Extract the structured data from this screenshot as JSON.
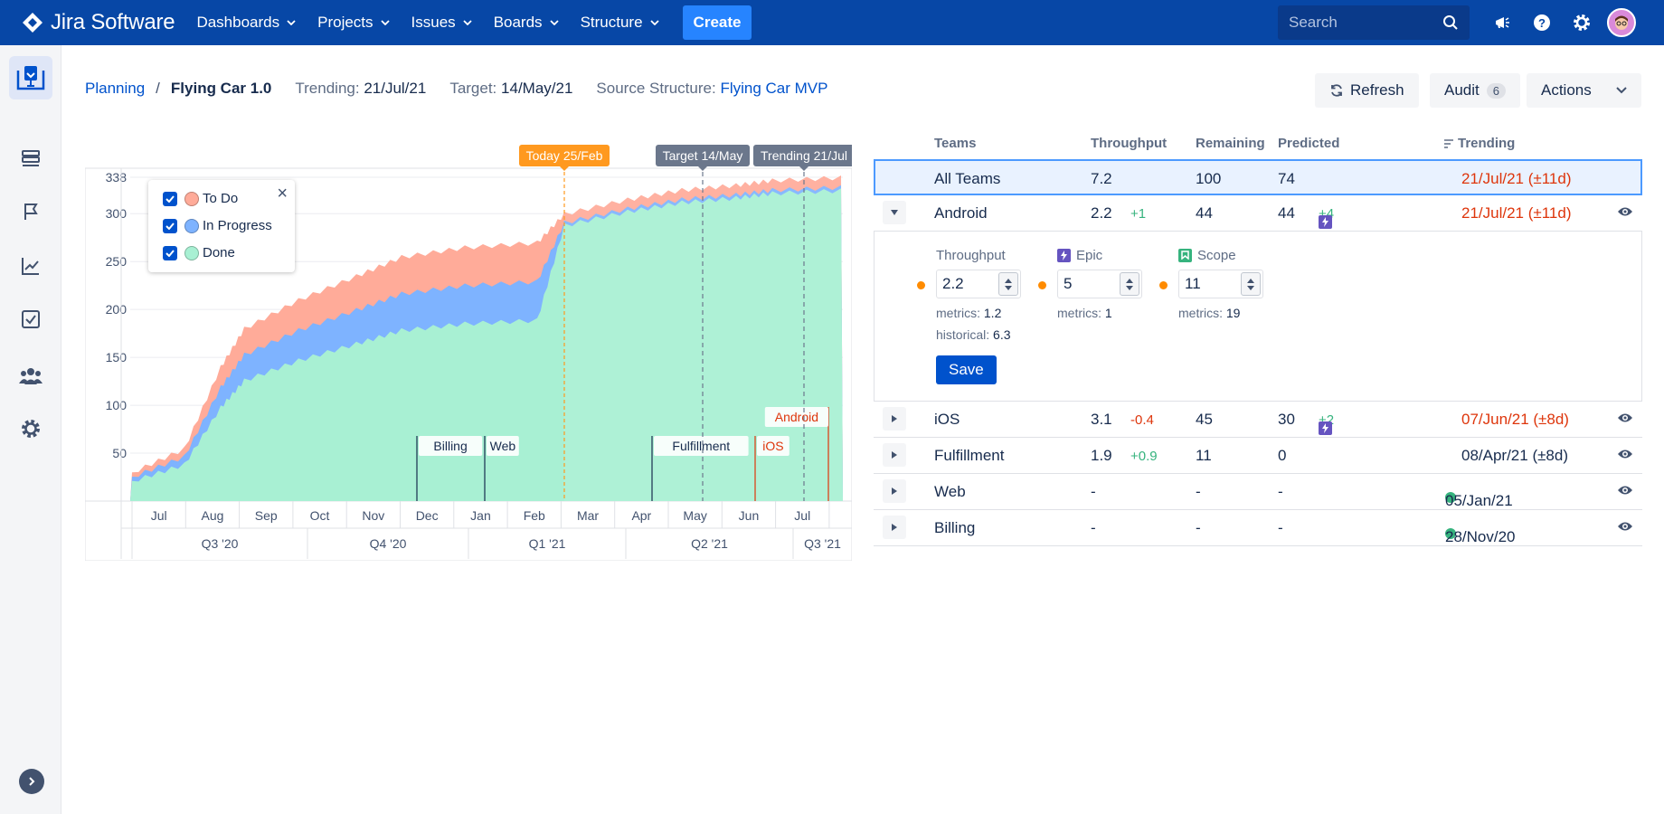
{
  "app": {
    "name": "Jira Software"
  },
  "topnav": {
    "items": [
      "Dashboards",
      "Projects",
      "Issues",
      "Boards",
      "Structure"
    ],
    "create_label": "Create",
    "search_placeholder": "Search"
  },
  "header": {
    "breadcrumb_root": "Planning",
    "breadcrumb_sep": "/",
    "title": "Flying Car 1.0",
    "trending_label": "Trending:",
    "trending_value": "21/Jul/21",
    "target_label": "Target:",
    "target_value": "14/May/21",
    "source_label": "Source Structure:",
    "source_value": "Flying Car MVP",
    "refresh_label": "Refresh",
    "audit_label": "Audit",
    "audit_count": "6",
    "actions_label": "Actions"
  },
  "legend": {
    "items": [
      {
        "label": "To Do",
        "color": "#ffab99"
      },
      {
        "label": "In Progress",
        "color": "#7eb3ff"
      },
      {
        "label": "Done",
        "color": "#a8f0d3"
      }
    ]
  },
  "chart_data": {
    "type": "area",
    "stacked": true,
    "y_ticks": [
      "338",
      "300",
      "250",
      "200",
      "150",
      "100",
      "50"
    ],
    "ylim": [
      0,
      338
    ],
    "months": [
      "Jul",
      "Aug",
      "Sep",
      "Oct",
      "Nov",
      "Dec",
      "Jan",
      "Feb",
      "Mar",
      "Apr",
      "May",
      "Jun",
      "Jul"
    ],
    "quarters": [
      "Q3 '20",
      "Q4 '20",
      "Q1 '21",
      "Q2 '21",
      "Q3 '21"
    ],
    "markers": [
      {
        "label": "Today 25/Feb",
        "color": "#ff991f"
      },
      {
        "label": "Target 14/May",
        "color": "#6b778c"
      },
      {
        "label": "Trending 21/Jul",
        "color": "#6b778c"
      }
    ],
    "milestones": [
      "Billing",
      "Web",
      "Fulfillment",
      "iOS",
      "Android"
    ],
    "series": [
      {
        "name": "To Do",
        "color": "#ffab99"
      },
      {
        "name": "In Progress",
        "color": "#7eb3ff"
      },
      {
        "name": "Done",
        "color": "#a8f0d3"
      }
    ],
    "x": [
      "Jun 20",
      "Jul 20",
      "Aug 20",
      "Sep 20",
      "Oct 20",
      "Nov 20",
      "Dec 20",
      "Jan 21",
      "Feb 21",
      "25 Feb 21",
      "Mar 21",
      "Apr 21",
      "May 21",
      "Jun 21",
      "Jul 21"
    ],
    "totals": [
      30,
      55,
      140,
      180,
      210,
      235,
      255,
      265,
      270,
      300,
      315,
      325,
      330,
      335,
      338
    ]
  },
  "table": {
    "headers": [
      "Teams",
      "Throughput",
      "Remaining",
      "Predicted",
      "Trending"
    ],
    "all": {
      "team": "All Teams",
      "throughput": "7.2",
      "remaining": "100",
      "predicted": "74",
      "trending": "21/Jul/21 (±11d)"
    },
    "rows": [
      {
        "team": "Android",
        "throughput": "2.2",
        "delta": "+1",
        "remaining": "44",
        "predicted": "44",
        "pdelta": "+4",
        "trending": "21/Jul/21 (±11d)"
      },
      {
        "team": "iOS",
        "throughput": "3.1",
        "delta": "-0.4",
        "remaining": "45",
        "predicted": "30",
        "pdelta": "+2",
        "trending": "07/Jun/21 (±8d)"
      },
      {
        "team": "Fulfillment",
        "throughput": "1.9",
        "delta": "+0.9",
        "remaining": "11",
        "predicted": "0",
        "trending": "08/Apr/21 (±8d)"
      },
      {
        "team": "Web",
        "throughput": "-",
        "remaining": "-",
        "predicted": "-",
        "trending": "05/Jan/21"
      },
      {
        "team": "Billing",
        "throughput": "-",
        "remaining": "-",
        "predicted": "-",
        "trending": "28/Nov/20"
      }
    ],
    "detail": {
      "throughput_label": "Throughput",
      "throughput_value": "2.2",
      "throughput_metrics_label": "metrics:",
      "throughput_metrics": "1.2",
      "throughput_hist_label": "historical:",
      "throughput_hist": "6.3",
      "epic_label": "Epic",
      "epic_value": "5",
      "epic_metrics_label": "metrics:",
      "epic_metrics": "1",
      "scope_label": "Scope",
      "scope_value": "11",
      "scope_metrics_label": "metrics:",
      "scope_metrics": "19",
      "save_label": "Save"
    }
  }
}
